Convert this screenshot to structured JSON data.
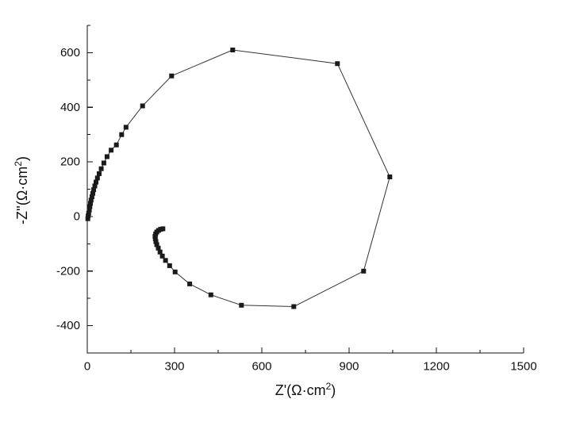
{
  "figure": {
    "background": "#ffffff",
    "axis_color": "#111111",
    "line_color": "#333333",
    "marker_color": "#1a1a1a"
  },
  "chart_data": {
    "type": "scatter",
    "title": "",
    "xlabel_pre": "Z'(Ω·cm",
    "xlabel_sup": "2",
    "xlabel_post": ")",
    "ylabel_pre": "-Z''(Ω·cm",
    "ylabel_sup": "2",
    "ylabel_post": ")",
    "xlim": [
      0,
      1500
    ],
    "ylim": [
      -500,
      700
    ],
    "xticks": [
      0,
      300,
      600,
      900,
      1200,
      1500
    ],
    "yticks": [
      -400,
      -200,
      0,
      200,
      400,
      600
    ],
    "x_minor_step": 150,
    "y_minor_step": 100,
    "grid": false,
    "legend": "none",
    "marker": "filled-square",
    "line_style": "solid",
    "series": [
      {
        "name": "impedance-spectrum",
        "points": [
          [
            2,
            -8
          ],
          [
            3,
            2
          ],
          [
            5,
            12
          ],
          [
            7,
            24
          ],
          [
            9,
            36
          ],
          [
            11,
            48
          ],
          [
            13,
            60
          ],
          [
            16,
            72
          ],
          [
            19,
            85
          ],
          [
            22,
            98
          ],
          [
            26,
            112
          ],
          [
            30,
            126
          ],
          [
            35,
            141
          ],
          [
            41,
            157
          ],
          [
            48,
            175
          ],
          [
            57,
            196
          ],
          [
            68,
            219
          ],
          [
            82,
            243
          ],
          [
            100,
            262
          ],
          [
            118,
            300
          ],
          [
            133,
            327
          ],
          [
            190,
            405
          ],
          [
            290,
            515
          ],
          [
            500,
            610
          ],
          [
            860,
            560
          ],
          [
            1040,
            145
          ],
          [
            950,
            -200
          ],
          [
            710,
            -330
          ],
          [
            530,
            -325
          ],
          [
            425,
            -287
          ],
          [
            352,
            -247
          ],
          [
            302,
            -203
          ],
          [
            283,
            -180
          ],
          [
            269,
            -161
          ],
          [
            258,
            -145
          ],
          [
            250,
            -130
          ],
          [
            244,
            -116
          ],
          [
            239,
            -103
          ],
          [
            236,
            -92
          ],
          [
            234,
            -82
          ],
          [
            233,
            -73
          ],
          [
            235,
            -64
          ],
          [
            239,
            -57
          ],
          [
            245,
            -51
          ],
          [
            252,
            -47
          ],
          [
            260,
            -45
          ]
        ]
      }
    ]
  }
}
